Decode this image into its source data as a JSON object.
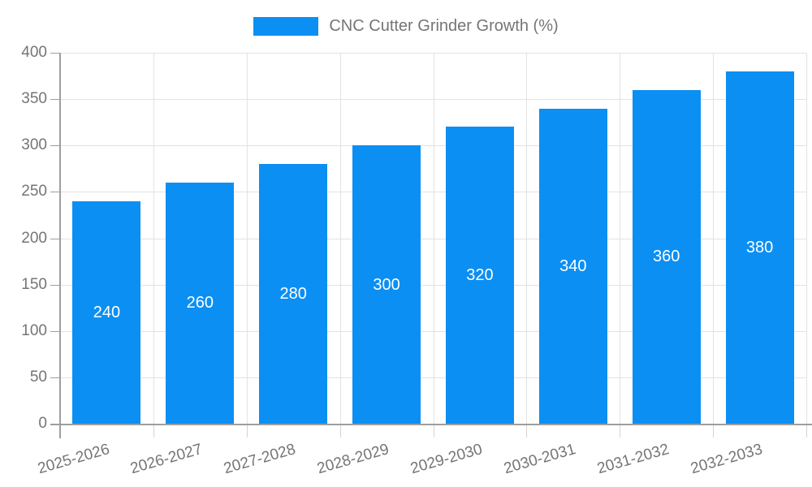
{
  "chart_data": {
    "type": "bar",
    "series_name": "CNC Cutter Grinder Growth (%)",
    "legend_position": "top",
    "categories": [
      "2025-2026",
      "2026-2027",
      "2027-2028",
      "2028-2029",
      "2029-2030",
      "2030-2031",
      "2031-2032",
      "2032-2033"
    ],
    "values": [
      240,
      260,
      280,
      300,
      320,
      340,
      360,
      380
    ],
    "xlabel": "",
    "ylabel": "",
    "ylim": [
      0,
      400
    ],
    "yticks": [
      0,
      50,
      100,
      150,
      200,
      250,
      300,
      350,
      400
    ],
    "grid": true,
    "colors": {
      "bar": "#0B8FF3",
      "bar_label": "#FFFFFF",
      "axis_text": "#757575",
      "axis_line": "#9E9E9E",
      "grid_line": "#E2E2E2",
      "minor_tick": "#D4D4D4",
      "background": "#FFFFFF"
    }
  }
}
